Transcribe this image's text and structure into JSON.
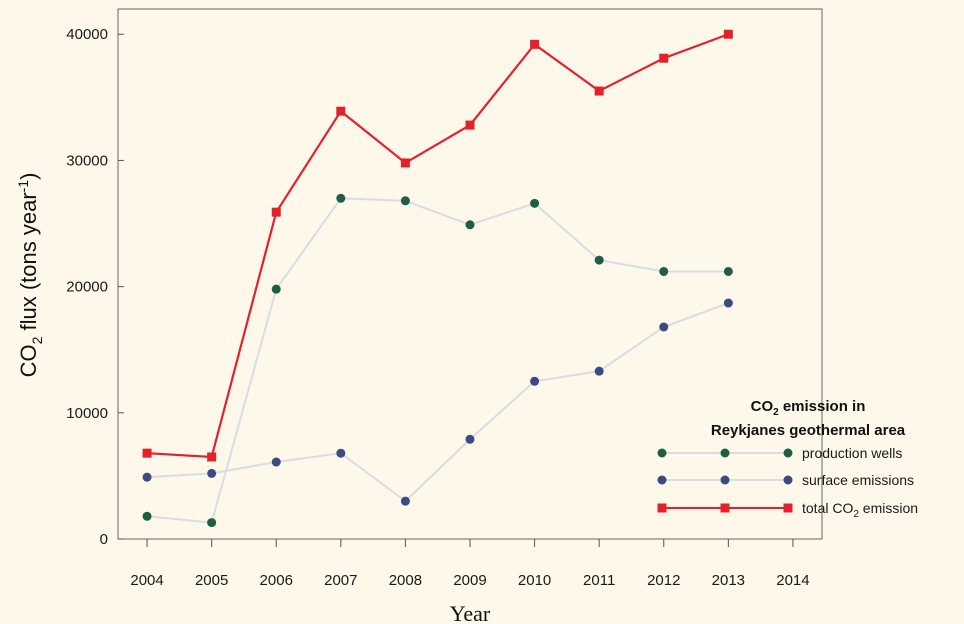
{
  "chart_data": {
    "type": "line",
    "xlabel": "Year",
    "ylabel": {
      "prefix": "CO",
      "sub": "2",
      "mid": " flux (tons year",
      "sup": "-1",
      "suffix": ")"
    },
    "xlim": [
      2003.55,
      2014.45
    ],
    "ylim": [
      0,
      42000
    ],
    "x_ticks": [
      2004,
      2005,
      2006,
      2007,
      2008,
      2009,
      2010,
      2011,
      2012,
      2013,
      2014
    ],
    "y_ticks": [
      0,
      10000,
      20000,
      30000,
      40000
    ],
    "x": [
      2004,
      2005,
      2006,
      2007,
      2008,
      2009,
      2010,
      2011,
      2012,
      2013
    ],
    "legend_title_1": {
      "prefix": "CO",
      "sub": "2",
      "suffix": " emission in"
    },
    "legend_title_2": "Reykjanes geothermal area",
    "legend_position": "lower-right",
    "series": [
      {
        "name": "production wells",
        "values": [
          1800,
          1300,
          19800,
          27000,
          26800,
          24900,
          26600,
          22100,
          21200,
          21200
        ],
        "line_color": "#d6dde4",
        "marker_color": "#1f5e45",
        "marker": "circle"
      },
      {
        "name": "surface emissions",
        "values": [
          4900,
          5200,
          6100,
          6800,
          3000,
          7900,
          12500,
          13300,
          16800,
          18700
        ],
        "line_color": "#d6dde4",
        "marker_color": "#3b4a82",
        "marker": "circle"
      },
      {
        "name_parts": {
          "prefix": "total CO",
          "sub": "2",
          "suffix": " emission"
        },
        "values": [
          6800,
          6500,
          25900,
          33900,
          29800,
          32800,
          39200,
          35500,
          38100,
          40000
        ],
        "line_color": "#e3212b",
        "marker_color": "#e3212b",
        "marker": "square"
      }
    ]
  }
}
